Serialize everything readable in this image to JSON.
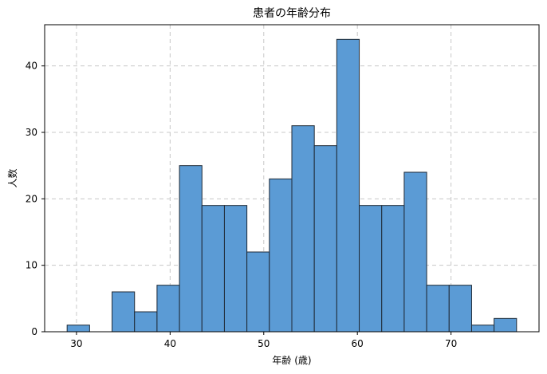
{
  "chart_data": {
    "type": "bar",
    "title": "患者の年齢分布",
    "xlabel": "年齢 (歳)",
    "ylabel": "人数",
    "xlim": [
      26.6,
      79.4
    ],
    "ylim": [
      0,
      46.2
    ],
    "grid": true,
    "bar_color": "#5b9bd5",
    "bar_edge_color": "#1f2a36",
    "bins": [
      {
        "x0": 29.0,
        "x1": 31.4,
        "value": 1
      },
      {
        "x0": 31.4,
        "x1": 33.8,
        "value": 0
      },
      {
        "x0": 33.8,
        "x1": 36.2,
        "value": 6
      },
      {
        "x0": 36.2,
        "x1": 38.6,
        "value": 3
      },
      {
        "x0": 38.6,
        "x1": 41.0,
        "value": 7
      },
      {
        "x0": 41.0,
        "x1": 43.4,
        "value": 25
      },
      {
        "x0": 43.4,
        "x1": 45.8,
        "value": 19
      },
      {
        "x0": 45.8,
        "x1": 48.2,
        "value": 19
      },
      {
        "x0": 48.2,
        "x1": 50.6,
        "value": 12
      },
      {
        "x0": 50.6,
        "x1": 53.0,
        "value": 23
      },
      {
        "x0": 53.0,
        "x1": 55.4,
        "value": 31
      },
      {
        "x0": 55.4,
        "x1": 57.8,
        "value": 28
      },
      {
        "x0": 57.8,
        "x1": 60.2,
        "value": 44
      },
      {
        "x0": 60.2,
        "x1": 62.6,
        "value": 19
      },
      {
        "x0": 62.6,
        "x1": 65.0,
        "value": 19
      },
      {
        "x0": 65.0,
        "x1": 67.4,
        "value": 24
      },
      {
        "x0": 67.4,
        "x1": 69.8,
        "value": 7
      },
      {
        "x0": 69.8,
        "x1": 72.2,
        "value": 7
      },
      {
        "x0": 72.2,
        "x1": 74.6,
        "value": 1
      },
      {
        "x0": 74.6,
        "x1": 77.0,
        "value": 2
      }
    ],
    "x_ticks": [
      30,
      40,
      50,
      60,
      70
    ],
    "y_ticks": [
      0,
      10,
      20,
      30,
      40
    ]
  }
}
